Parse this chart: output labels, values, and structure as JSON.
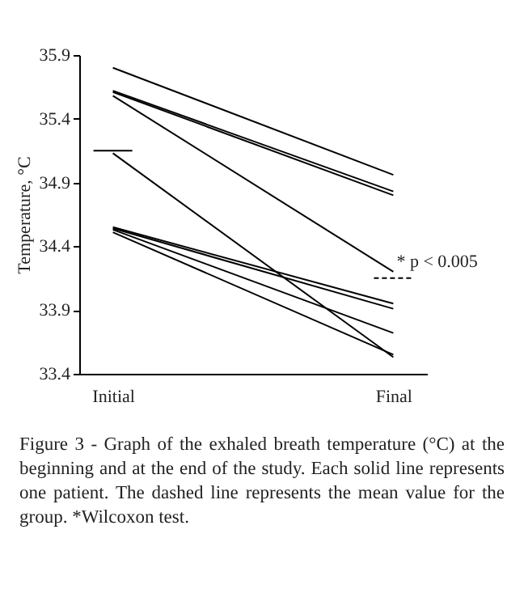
{
  "chart_data": {
    "type": "line",
    "categories": [
      "Initial",
      "Final"
    ],
    "ylabel": "Temperature, °C",
    "ylim": [
      33.4,
      35.9
    ],
    "yticks": [
      33.4,
      33.9,
      34.4,
      34.9,
      35.4,
      35.9
    ],
    "grid": false,
    "legend": false,
    "marker": "none",
    "line_style": "solid",
    "series": [
      {
        "color": "#000000",
        "values": [
          35.8,
          34.96
        ]
      },
      {
        "color": "#000000",
        "values": [
          35.62,
          34.83
        ]
      },
      {
        "color": "#000000",
        "values": [
          35.61,
          34.8
        ]
      },
      {
        "color": "#000000",
        "values": [
          35.58,
          34.2
        ]
      },
      {
        "color": "#000000",
        "values": [
          35.13,
          33.53
        ]
      },
      {
        "color": "#000000",
        "values": [
          34.55,
          33.95
        ]
      },
      {
        "color": "#000000",
        "values": [
          34.54,
          33.91
        ]
      },
      {
        "color": "#000000",
        "values": [
          34.53,
          33.72
        ]
      },
      {
        "color": "#000000",
        "values": [
          34.51,
          33.55
        ]
      }
    ],
    "ref_lines": [
      {
        "axis": "y",
        "value": 35.15,
        "line_style": "solid",
        "color": "#000000"
      },
      {
        "axis": "y",
        "value": 34.15,
        "line_style": "dashed",
        "color": "#000000"
      }
    ],
    "annotations": [
      {
        "text": "* p < 0.005",
        "x": "Final",
        "y": 34.2
      },
      "Figure 3 - Graph of the exhaled breath temperature (°C) at the beginning and at the end of the study. Each solid line represents one patient. The dashed line represents the mean value for the group. *Wilcoxon test."
    ]
  }
}
